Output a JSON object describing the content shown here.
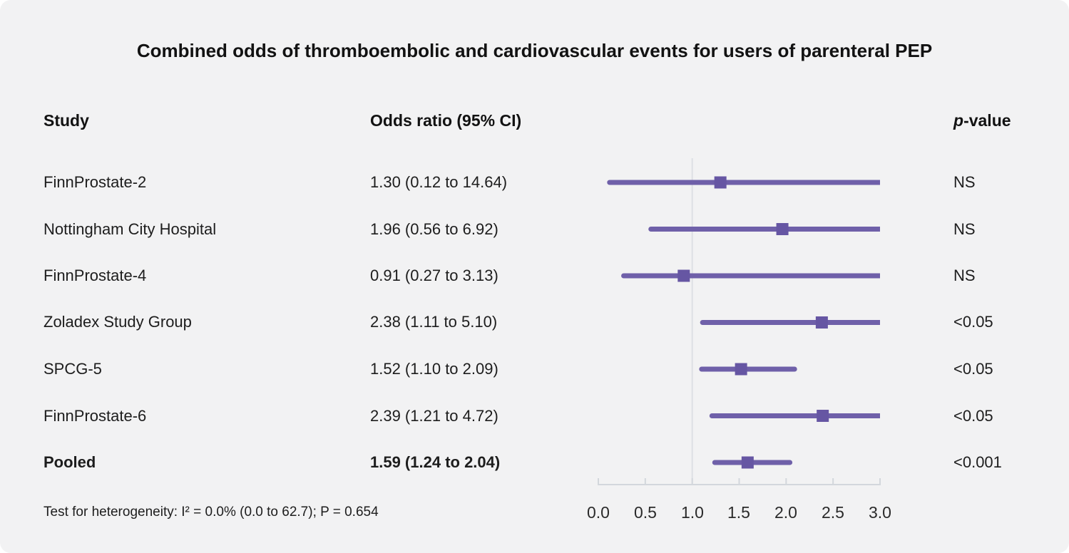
{
  "title": "Combined odds of thromboembolic and cardiovascular events for users of parenteral PEP",
  "columns": {
    "study": "Study",
    "odds_ratio": "Odds ratio (95% CI)",
    "pvalue_italic": "p",
    "pvalue_rest": "-value"
  },
  "footnote": "Test for heterogeneity: I² = 0.0% (0.0 to 62.7); P = 0.654",
  "colors": {
    "background": "#f2f2f3",
    "ci_line": "#6f60a9",
    "marker": "#6656a3",
    "axis": "#d3d7dc",
    "reference_line": "#dde0e4"
  },
  "chart_data": {
    "type": "forest",
    "title": "Combined odds of thromboembolic and cardiovascular events for users of parenteral PEP",
    "xlim": [
      0,
      3
    ],
    "reference_line": 1.0,
    "x_tick_values": [
      0,
      0.5,
      1,
      1.5,
      2,
      2.5,
      3
    ],
    "x_ticks": [
      "0.0",
      "0.5",
      "1.0",
      "1.5",
      "2.0",
      "2.5",
      "3.0"
    ],
    "legend": "none",
    "rows": [
      {
        "study": "FinnProstate-2",
        "or_text": "1.30 (0.12 to 14.64)",
        "est": 1.3,
        "lo": 0.12,
        "hi": 14.64,
        "p": "NS"
      },
      {
        "study": "Nottingham City Hospital",
        "or_text": "1.96 (0.56 to 6.92)",
        "est": 1.96,
        "lo": 0.56,
        "hi": 6.92,
        "p": "NS"
      },
      {
        "study": "FinnProstate-4",
        "or_text": "0.91 (0.27 to 3.13)",
        "est": 0.91,
        "lo": 0.27,
        "hi": 3.13,
        "p": "NS"
      },
      {
        "study": "Zoladex Study Group",
        "or_text": "2.38 (1.11 to 5.10)",
        "est": 2.38,
        "lo": 1.11,
        "hi": 5.1,
        "p": "<0.05"
      },
      {
        "study": "SPCG-5",
        "or_text": "1.52 (1.10 to 2.09)",
        "est": 1.52,
        "lo": 1.1,
        "hi": 2.09,
        "p": "<0.05"
      },
      {
        "study": "FinnProstate-6",
        "or_text": "2.39 (1.21 to 4.72)",
        "est": 2.39,
        "lo": 1.21,
        "hi": 4.72,
        "p": "<0.05"
      },
      {
        "study": "Pooled",
        "or_text": "1.59 (1.24 to 2.04)",
        "est": 1.59,
        "lo": 1.24,
        "hi": 2.04,
        "p": "<0.001"
      }
    ]
  }
}
